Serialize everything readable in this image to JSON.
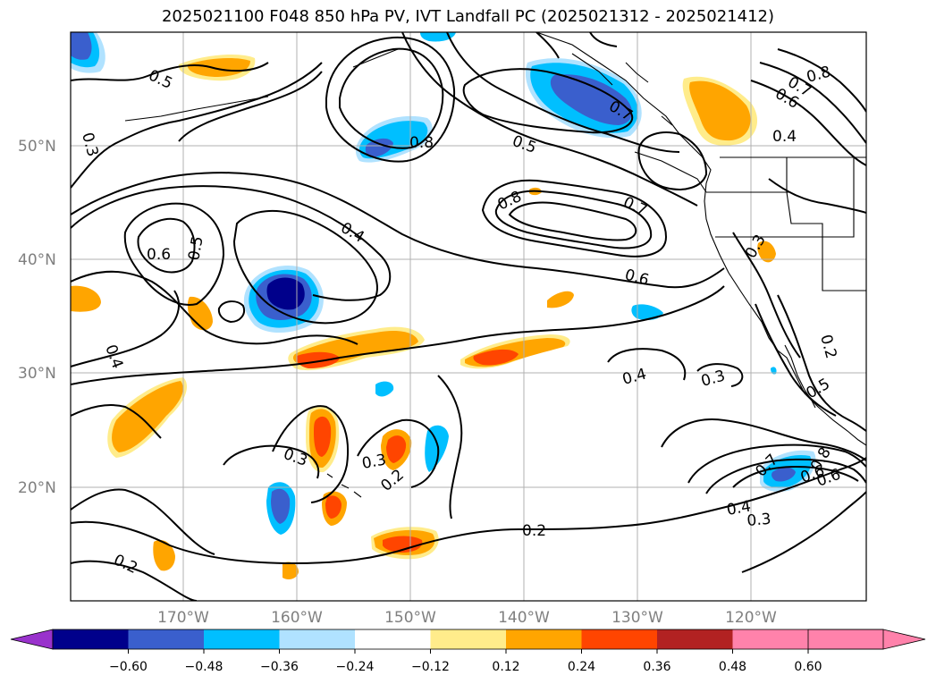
{
  "title": "2025021100 F048 850 hPa PV, IVT Landfall PC (2025021312 - 2025021412)",
  "lat_labels": [
    "50°N",
    "40°N",
    "30°N",
    "20°N"
  ],
  "lon_labels": [
    "170°W",
    "160°W",
    "150°W",
    "140°W",
    "130°W",
    "120°W"
  ],
  "colorbar": {
    "ticks": [
      "−0.60",
      "−0.48",
      "−0.36",
      "−0.24",
      "−0.12",
      "0.12",
      "0.24",
      "0.36",
      "0.48",
      "0.60"
    ],
    "colors": [
      "#9932cc",
      "#00008b",
      "#3a5fcd",
      "#00bfff",
      "#b0e2ff",
      "#ffffff",
      "#ffec8b",
      "#ffa500",
      "#ff4500",
      "#b22222",
      "#ff82ab"
    ]
  },
  "contour_labels": [
    "0.5",
    "0.3",
    "0.8",
    "0.5",
    "0.8",
    "0.6",
    "0.4",
    "0.7",
    "0.8",
    "0.7",
    "0.6",
    "0.4",
    "0.5",
    "0.6",
    "0.4",
    "0.7",
    "0.6",
    "0.3",
    "0.4",
    "0.3",
    "0.3",
    "0.3",
    "0.2",
    "0.2",
    "0.2",
    "0.4",
    "0.3",
    "0.7",
    "0.8",
    "0.6",
    "0.5",
    "0.2"
  ]
}
